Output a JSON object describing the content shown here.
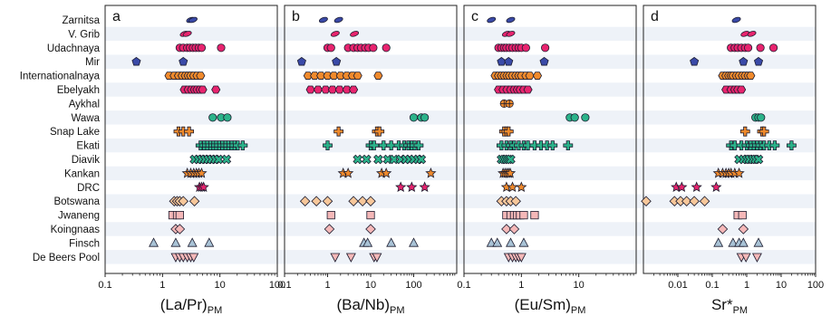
{
  "localities": [
    "Zarnitsa",
    "V. Grib",
    "Udachnaya",
    "Mir",
    "Internationalnaya",
    "Ebelyakh",
    "Aykhal",
    "Wawa",
    "Snap Lake",
    "Ekati",
    "Diavik",
    "Kankan",
    "DRC",
    "Botswana",
    "Jwaneng",
    "Koingnaas",
    "Finsch",
    "De Beers Pool"
  ],
  "colors": {
    "navy": "#3a4aa8",
    "magenta": "#e8246e",
    "orange": "#f08a2c",
    "green": "#2bb38a",
    "yellow": "#f2e230",
    "tan": "#f7c79a",
    "pink": "#f5b8b8",
    "gray_blue": "#a9c3d6",
    "stripe": "#eef2f8"
  },
  "chart_data": [
    {
      "type": "scatter",
      "panel_letter": "a",
      "xlabel": "(La/Pr)",
      "xlabel_sub": "PM",
      "xscale": "log",
      "xlim": [
        0.1,
        100
      ],
      "xticks": [
        "0.1",
        "1",
        "10",
        "100"
      ],
      "tick_values": [
        0.1,
        1,
        10,
        100
      ],
      "grid": false,
      "points": [
        {
          "row": "Zarnitsa",
          "x": [
            3.1,
            3.4
          ],
          "marker": "ellipse",
          "color": "navy"
        },
        {
          "row": "V. Grib",
          "x": [
            2.4,
            2.7
          ],
          "marker": "ellipse",
          "color": "magenta"
        },
        {
          "row": "Udachnaya",
          "x": [
            2.0,
            2.3,
            2.7,
            3.0,
            3.4,
            3.8,
            4.3,
            4.8,
            10.5
          ],
          "marker": "circle",
          "color": "magenta"
        },
        {
          "row": "Mir",
          "x": [
            0.35,
            2.3
          ],
          "marker": "pentagon",
          "color": "navy"
        },
        {
          "row": "Internationalnaya",
          "x": [
            1.3,
            1.6,
            1.9,
            2.2,
            2.5,
            2.8,
            3.1,
            3.5,
            4.0,
            4.6
          ],
          "marker": "hexagon",
          "color": "orange"
        },
        {
          "row": "Ebelyakh",
          "x": [
            2.4,
            2.8,
            3.2,
            3.6,
            4.0,
            4.5,
            5.0,
            8.5
          ],
          "marker": "hexagon",
          "color": "magenta"
        },
        {
          "row": "Aykhal",
          "x": [],
          "marker": "circle",
          "color": "orange"
        },
        {
          "row": "Wawa",
          "x": [
            7.5,
            10.5,
            13.5
          ],
          "marker": "circle",
          "color": "green"
        },
        {
          "row": "Snap Lake",
          "x": [
            1.9,
            2.3,
            2.9
          ],
          "marker": "plus",
          "color": "orange"
        },
        {
          "row": "Ekati",
          "x": [
            4.6,
            5.3,
            6.0,
            6.8,
            7.7,
            8.6,
            9.7,
            11,
            12.5,
            14,
            16,
            18,
            20.5,
            25
          ],
          "marker": "plus",
          "color": "green"
        },
        {
          "row": "Diavik",
          "x": [
            3.6,
            4.2,
            4.8,
            5.5,
            6.3,
            7.2,
            8.3,
            9.5,
            13
          ],
          "marker": "cross",
          "color": "green"
        },
        {
          "row": "Kankan",
          "x": [
            2.7,
            3.1,
            3.5,
            3.9,
            4.3,
            4.8
          ],
          "marker": "star",
          "color": "orange"
        },
        {
          "row": "DRC",
          "x": [
            4.4,
            4.8,
            5.2
          ],
          "marker": "star",
          "color": "magenta"
        },
        {
          "row": "Botswana",
          "x": [
            1.6,
            1.8,
            2.0,
            2.3,
            3.6
          ],
          "marker": "diamond",
          "color": "tan"
        },
        {
          "row": "Jwaneng",
          "x": [
            1.5,
            1.8,
            2.0
          ],
          "marker": "square",
          "color": "pink"
        },
        {
          "row": "Koingnaas",
          "x": [
            1.7,
            2.0
          ],
          "marker": "diamond",
          "color": "pink"
        },
        {
          "row": "Finsch",
          "x": [
            0.7,
            1.7,
            3.3,
            6.5
          ],
          "marker": "triangle",
          "color": "gray_blue"
        },
        {
          "row": "De Beers Pool",
          "x": [
            1.7,
            2.0,
            2.3,
            2.7,
            3.1,
            3.5
          ],
          "marker": "triangle-down",
          "color": "pink"
        }
      ]
    },
    {
      "type": "scatter",
      "panel_letter": "b",
      "xlabel": "(Ba/Nb)",
      "xlabel_sub": "PM",
      "xscale": "log",
      "xlim": [
        0.1,
        1000
      ],
      "xticks": [
        "0.1",
        "1",
        "10",
        "100"
      ],
      "tick_values": [
        0.1,
        1,
        10,
        100
      ],
      "grid": false,
      "points": [
        {
          "row": "Zarnitsa",
          "x": [
            0.8,
            1.8
          ],
          "marker": "ellipse",
          "color": "navy"
        },
        {
          "row": "V. Grib",
          "x": [
            1.5,
            4.2
          ],
          "marker": "ellipse",
          "color": "magenta"
        },
        {
          "row": "Udachnaya",
          "x": [
            1.0,
            1.2,
            3.0,
            4.0,
            5.0,
            6.0,
            7.5,
            9.0,
            11.5,
            23
          ],
          "marker": "circle",
          "color": "magenta"
        },
        {
          "row": "Mir",
          "x": [
            0.25,
            1.6
          ],
          "marker": "pentagon",
          "color": "navy"
        },
        {
          "row": "Internationalnaya",
          "x": [
            0.35,
            0.5,
            0.7,
            1.0,
            1.4,
            2.0,
            2.8,
            3.8,
            5.0,
            15
          ],
          "marker": "hexagon",
          "color": "orange"
        },
        {
          "row": "Ebelyakh",
          "x": [
            0.4,
            0.6,
            0.9,
            1.3,
            1.9,
            2.8,
            4.0
          ],
          "marker": "hexagon",
          "color": "magenta"
        },
        {
          "row": "Aykhal",
          "x": [],
          "marker": "circle",
          "color": "orange"
        },
        {
          "row": "Wawa",
          "x": [
            100,
            150,
            180
          ],
          "marker": "circle",
          "color": "green"
        },
        {
          "row": "Snap Lake",
          "x": [
            1.8,
            14,
            16
          ],
          "marker": "plus",
          "color": "orange"
        },
        {
          "row": "Ekati",
          "x": [
            1.0,
            10,
            12,
            20,
            30,
            45,
            60,
            75,
            90,
            105,
            130
          ],
          "marker": "plus",
          "color": "green"
        },
        {
          "row": "Diavik",
          "x": [
            5,
            8,
            15,
            25,
            35,
            50,
            65,
            80,
            100,
            125,
            150
          ],
          "marker": "cross",
          "color": "green"
        },
        {
          "row": "Kankan",
          "x": [
            2.3,
            3.0,
            18,
            23,
            250
          ],
          "marker": "star",
          "color": "orange"
        },
        {
          "row": "DRC",
          "x": [
            50,
            90,
            180
          ],
          "marker": "star",
          "color": "magenta"
        },
        {
          "row": "Botswana",
          "x": [
            0.3,
            0.55,
            1.0,
            4.0,
            6.5,
            10
          ],
          "marker": "diamond",
          "color": "tan"
        },
        {
          "row": "Jwaneng",
          "x": [
            1.2,
            10
          ],
          "marker": "square",
          "color": "pink"
        },
        {
          "row": "Koingnaas",
          "x": [
            1.1,
            10
          ],
          "marker": "diamond",
          "color": "pink"
        },
        {
          "row": "Finsch",
          "x": [
            7,
            8.5,
            30,
            100
          ],
          "marker": "triangle",
          "color": "gray_blue"
        },
        {
          "row": "De Beers Pool",
          "x": [
            1.5,
            3.5,
            12,
            14
          ],
          "marker": "triangle-down",
          "color": "pink"
        }
      ]
    },
    {
      "type": "scatter",
      "panel_letter": "c",
      "xlabel": "(Eu/Sm)",
      "xlabel_sub": "PM",
      "xscale": "log",
      "xlim": [
        0.1,
        100
      ],
      "xticks": [
        "0.1",
        "1",
        "10"
      ],
      "tick_values": [
        0.1,
        1,
        10
      ],
      "grid": false,
      "points": [
        {
          "row": "Zarnitsa",
          "x": [
            0.3,
            0.65
          ],
          "marker": "ellipse",
          "color": "navy"
        },
        {
          "row": "V. Grib",
          "x": [
            0.55,
            0.65
          ],
          "marker": "ellipse",
          "color": "magenta"
        },
        {
          "row": "Udachnaya",
          "x": [
            0.4,
            0.45,
            0.5,
            0.55,
            0.62,
            0.7,
            0.8,
            0.9,
            1.0,
            1.2,
            2.6
          ],
          "marker": "circle",
          "color": "magenta"
        },
        {
          "row": "Mir",
          "x": [
            0.45,
            0.6,
            2.5
          ],
          "marker": "pentagon",
          "color": "navy"
        },
        {
          "row": "Internationalnaya",
          "x": [
            0.35,
            0.4,
            0.45,
            0.5,
            0.56,
            0.62,
            0.7,
            0.8,
            0.9,
            1.0,
            1.2,
            1.4,
            1.9
          ],
          "marker": "hexagon",
          "color": "orange"
        },
        {
          "row": "Ebelyakh",
          "x": [
            0.4,
            0.48,
            0.56,
            0.65,
            0.75,
            0.85,
            0.95,
            1.1,
            1.3
          ],
          "marker": "hexagon",
          "color": "magenta"
        },
        {
          "row": "Aykhal",
          "x": [
            0.5,
            0.62
          ],
          "marker": "circle-cross",
          "color": "orange"
        },
        {
          "row": "Wawa",
          "x": [
            7,
            8.5,
            13
          ],
          "marker": "circle",
          "color": "green"
        },
        {
          "row": "Snap Lake",
          "x": [
            0.5,
            0.55,
            0.6
          ],
          "marker": "plus",
          "color": "orange"
        },
        {
          "row": "Ekati",
          "x": [
            0.45,
            0.55,
            0.65,
            0.75,
            0.9,
            1.1,
            1.3,
            1.7,
            2.2,
            2.8,
            3.5,
            6.5
          ],
          "marker": "plus",
          "color": "green"
        },
        {
          "row": "Diavik",
          "x": [
            0.45,
            0.5,
            0.55,
            0.6,
            0.65
          ],
          "marker": "cross",
          "color": "green"
        },
        {
          "row": "Kankan",
          "x": [
            0.48,
            0.52,
            0.56,
            0.6,
            0.64
          ],
          "marker": "star",
          "color": "orange"
        },
        {
          "row": "DRC",
          "x": [
            0.55,
            0.7,
            1.0
          ],
          "marker": "star",
          "color": "orange"
        },
        {
          "row": "Botswana",
          "x": [
            0.45,
            0.55,
            0.65,
            0.8
          ],
          "marker": "diamond",
          "color": "tan"
        },
        {
          "row": "Jwaneng",
          "x": [
            0.55,
            0.65,
            0.75,
            0.85,
            0.95,
            1.1,
            1.7
          ],
          "marker": "square",
          "color": "pink"
        },
        {
          "row": "Koingnaas",
          "x": [
            0.55,
            0.75
          ],
          "marker": "diamond",
          "color": "pink"
        },
        {
          "row": "Finsch",
          "x": [
            0.3,
            0.38,
            0.65,
            1.1
          ],
          "marker": "triangle",
          "color": "gray_blue"
        },
        {
          "row": "De Beers Pool",
          "x": [
            0.6,
            0.7,
            0.8,
            0.9,
            1.0
          ],
          "marker": "triangle-down",
          "color": "pink"
        }
      ]
    },
    {
      "type": "scatter",
      "panel_letter": "d",
      "xlabel": "Sr*",
      "xlabel_sub": "PM",
      "xscale": "log",
      "xlim": [
        0.001,
        100
      ],
      "xticks": [
        "0.01",
        "0.1",
        "1",
        "10",
        "100"
      ],
      "tick_values": [
        0.01,
        0.1,
        1,
        10,
        100
      ],
      "grid": false,
      "points": [
        {
          "row": "Zarnitsa",
          "x": [
            0.5
          ],
          "marker": "ellipse",
          "color": "navy"
        },
        {
          "row": "V. Grib",
          "x": [
            0.9,
            1.4
          ],
          "marker": "ellipse",
          "color": "magenta"
        },
        {
          "row": "Udachnaya",
          "x": [
            0.35,
            0.45,
            0.55,
            0.7,
            0.9,
            1.1,
            2.5,
            6.0
          ],
          "marker": "circle",
          "color": "magenta"
        },
        {
          "row": "Mir",
          "x": [
            0.03,
            0.8,
            2.2
          ],
          "marker": "pentagon",
          "color": "navy"
        },
        {
          "row": "Internationalnaya",
          "x": [
            0.2,
            0.25,
            0.3,
            0.35,
            0.4,
            0.5,
            0.6,
            0.75,
            0.9,
            1.1,
            1.3
          ],
          "marker": "hexagon",
          "color": "orange"
        },
        {
          "row": "Ebelyakh",
          "x": [
            0.25,
            0.35,
            0.45,
            0.55,
            0.7
          ],
          "marker": "hexagon",
          "color": "magenta"
        },
        {
          "row": "Aykhal",
          "x": [],
          "marker": "circle",
          "color": "orange"
        },
        {
          "row": "Wawa",
          "x": [
            1.8,
            2.2,
            2.6
          ],
          "marker": "circle",
          "color": "green"
        },
        {
          "row": "Snap Lake",
          "x": [
            0.9,
            2.8,
            3.2
          ],
          "marker": "plus",
          "color": "orange"
        },
        {
          "row": "Ekati",
          "x": [
            0.35,
            0.45,
            0.7,
            1.0,
            1.3,
            1.6,
            2.0,
            2.5,
            3.2,
            4.5,
            6.5,
            20
          ],
          "marker": "plus",
          "color": "green"
        },
        {
          "row": "Diavik",
          "x": [
            0.6,
            0.8,
            1.0,
            1.2,
            1.5,
            1.8,
            2.2
          ],
          "marker": "cross",
          "color": "green"
        },
        {
          "row": "Kankan",
          "x": [
            0.15,
            0.2,
            0.25,
            0.3,
            0.35,
            0.45,
            0.6
          ],
          "marker": "star",
          "color": "orange"
        },
        {
          "row": "DRC",
          "x": [
            0.009,
            0.013,
            0.035,
            0.13
          ],
          "marker": "star",
          "color": "magenta"
        },
        {
          "row": "Botswana",
          "x": [
            0.0012,
            0.008,
            0.012,
            0.018,
            0.03,
            0.06
          ],
          "marker": "diamond",
          "color": "tan"
        },
        {
          "row": "Jwaneng",
          "x": [
            0.55,
            0.75
          ],
          "marker": "square",
          "color": "pink"
        },
        {
          "row": "Koingnaas",
          "x": [
            0.2,
            0.8
          ],
          "marker": "diamond",
          "color": "pink"
        },
        {
          "row": "Finsch",
          "x": [
            0.15,
            0.4,
            0.6,
            0.8,
            2.2
          ],
          "marker": "triangle",
          "color": "gray_blue"
        },
        {
          "row": "De Beers Pool",
          "x": [
            0.7,
            0.95,
            2.0
          ],
          "marker": "triangle-down",
          "color": "pink"
        }
      ]
    }
  ]
}
